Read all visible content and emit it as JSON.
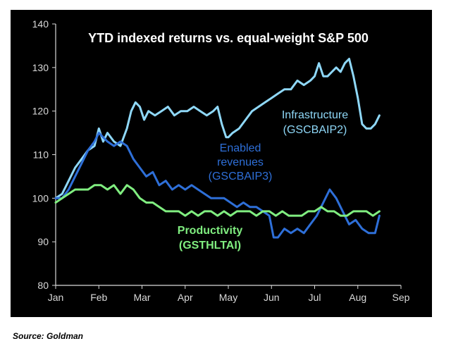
{
  "source_note": "Source: Goldman",
  "colors": {
    "background": "#000000",
    "axis": "#d9d9d9",
    "infrastructure": "#8fd8f8",
    "enabled": "#2e6fd8",
    "productivity": "#80ee80",
    "title": "#ffffff"
  },
  "chart_data": {
    "type": "line",
    "title": "YTD indexed returns vs. equal-weight S&P 500",
    "xlabel": "",
    "ylabel": "",
    "ylim": [
      80,
      140
    ],
    "yticks": [
      80,
      90,
      100,
      110,
      120,
      130,
      140
    ],
    "xlim": [
      0,
      8
    ],
    "xticks": [
      {
        "x": 0,
        "label": "Jan"
      },
      {
        "x": 1,
        "label": "Feb"
      },
      {
        "x": 2,
        "label": "Mar"
      },
      {
        "x": 3,
        "label": "Apr"
      },
      {
        "x": 4,
        "label": "May"
      },
      {
        "x": 5,
        "label": "Jun"
      },
      {
        "x": 6,
        "label": "Jul"
      },
      {
        "x": 7,
        "label": "Aug"
      },
      {
        "x": 8,
        "label": "Sep"
      }
    ],
    "grid": false,
    "series": [
      {
        "name": "Infrastructure (GSCBAIP2)",
        "label_lines": [
          "Infrastructure",
          "(GSCBAIP2)"
        ],
        "color_key": "infrastructure",
        "x": [
          0,
          0.15,
          0.3,
          0.45,
          0.6,
          0.75,
          0.9,
          1.0,
          1.1,
          1.2,
          1.35,
          1.5,
          1.65,
          1.75,
          1.85,
          1.95,
          2.05,
          2.15,
          2.3,
          2.45,
          2.6,
          2.75,
          2.9,
          3.05,
          3.2,
          3.35,
          3.5,
          3.65,
          3.75,
          3.85,
          3.95,
          4.0,
          4.1,
          4.25,
          4.4,
          4.55,
          4.7,
          4.85,
          5.0,
          5.15,
          5.3,
          5.45,
          5.6,
          5.75,
          5.9,
          6.0,
          6.1,
          6.2,
          6.3,
          6.4,
          6.5,
          6.6,
          6.7,
          6.8,
          6.9,
          7.0,
          7.1,
          7.2,
          7.3,
          7.4,
          7.5
        ],
        "values": [
          100,
          101,
          104,
          107,
          109,
          111,
          112,
          116,
          113,
          115,
          113,
          112,
          116,
          120,
          122,
          121,
          118,
          120,
          119,
          120,
          121,
          119,
          120,
          120,
          121,
          120,
          119,
          120,
          121,
          117,
          114,
          114,
          115,
          116,
          118,
          120,
          121,
          122,
          123,
          124,
          125,
          125,
          127,
          126,
          127,
          128,
          131,
          128,
          128,
          129,
          130,
          129,
          131,
          132,
          128,
          123,
          117,
          116,
          116,
          117,
          119
        ]
      },
      {
        "name": "Enabled revenues (GSCBAIP3)",
        "label_lines": [
          "Enabled",
          "revenues",
          "(GSCBAIP3)"
        ],
        "color_key": "enabled",
        "x": [
          0,
          0.15,
          0.3,
          0.45,
          0.6,
          0.75,
          0.9,
          1.0,
          1.1,
          1.2,
          1.35,
          1.5,
          1.65,
          1.8,
          1.95,
          2.1,
          2.25,
          2.4,
          2.55,
          2.7,
          2.85,
          3.0,
          3.15,
          3.3,
          3.45,
          3.6,
          3.75,
          3.9,
          4.05,
          4.2,
          4.35,
          4.5,
          4.65,
          4.8,
          4.95,
          5.05,
          5.15,
          5.3,
          5.45,
          5.6,
          5.75,
          5.9,
          6.05,
          6.2,
          6.35,
          6.5,
          6.65,
          6.8,
          6.95,
          7.1,
          7.25,
          7.4,
          7.5
        ],
        "values": [
          100,
          100,
          102,
          105,
          108,
          111,
          113,
          115,
          114,
          113,
          112,
          113,
          112,
          109,
          107,
          105,
          106,
          103,
          104,
          102,
          103,
          102,
          103,
          102,
          101,
          100,
          100,
          100,
          99,
          98,
          99,
          98,
          98,
          97,
          96,
          91,
          91,
          93,
          92,
          93,
          92,
          94,
          96,
          99,
          102,
          100,
          97,
          94,
          95,
          93,
          92,
          92,
          96
        ]
      },
      {
        "name": "Productivity (GSTHLTAI)",
        "label_lines": [
          "Productivity",
          "(GSTHLTAI)"
        ],
        "color_key": "productivity",
        "x": [
          0,
          0.15,
          0.3,
          0.45,
          0.6,
          0.75,
          0.9,
          1.05,
          1.2,
          1.35,
          1.5,
          1.65,
          1.8,
          1.95,
          2.1,
          2.25,
          2.4,
          2.55,
          2.7,
          2.85,
          3.0,
          3.15,
          3.3,
          3.45,
          3.6,
          3.75,
          3.9,
          4.05,
          4.2,
          4.35,
          4.5,
          4.65,
          4.8,
          4.95,
          5.1,
          5.25,
          5.4,
          5.55,
          5.7,
          5.85,
          6.0,
          6.15,
          6.3,
          6.45,
          6.6,
          6.75,
          6.9,
          7.05,
          7.2,
          7.35,
          7.5
        ],
        "values": [
          99,
          100,
          101,
          102,
          102,
          102,
          103,
          103,
          102,
          103,
          101,
          103,
          102,
          100,
          99,
          99,
          98,
          97,
          97,
          97,
          96,
          97,
          96,
          97,
          97,
          96,
          97,
          96,
          97,
          97,
          97,
          96,
          97,
          97,
          96,
          97,
          96,
          96,
          96,
          97,
          97,
          98,
          97,
          97,
          96,
          96,
          97,
          97,
          97,
          96,
          97
        ]
      }
    ]
  }
}
